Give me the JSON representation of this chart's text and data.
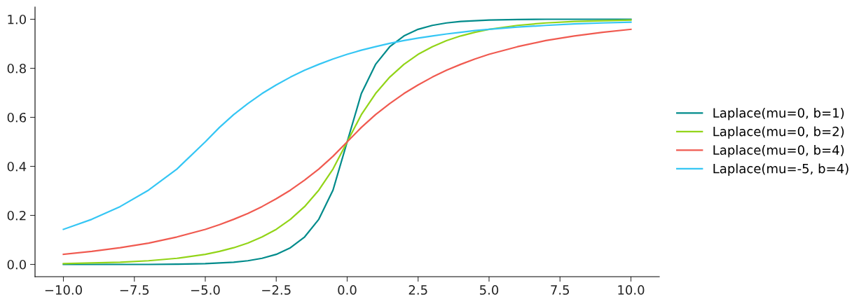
{
  "chart_data": {
    "type": "line",
    "x": [
      -10,
      -9,
      -8,
      -7,
      -6,
      -5,
      -4.5,
      -4,
      -3.5,
      -3,
      -2.5,
      -2,
      -1.5,
      -1,
      -0.5,
      0,
      0.5,
      1,
      1.5,
      2,
      2.5,
      3,
      3.5,
      4,
      4.5,
      5,
      6,
      7,
      8,
      9,
      10
    ],
    "series": [
      {
        "name": "Laplace(mu=0, b=1)",
        "color": "#008b8b",
        "values": [
          0.0,
          0.0,
          0.0,
          0.0,
          0.001,
          0.003,
          0.006,
          0.009,
          0.015,
          0.025,
          0.041,
          0.068,
          0.112,
          0.184,
          0.303,
          0.5,
          0.697,
          0.816,
          0.888,
          0.932,
          0.959,
          0.975,
          0.985,
          0.991,
          0.994,
          0.997,
          0.999,
          1.0,
          1.0,
          1.0,
          1.0
        ]
      },
      {
        "name": "Laplace(mu=0, b=2)",
        "color": "#92d418",
        "values": [
          0.003,
          0.006,
          0.009,
          0.015,
          0.025,
          0.041,
          0.053,
          0.068,
          0.087,
          0.112,
          0.143,
          0.184,
          0.236,
          0.303,
          0.389,
          0.5,
          0.611,
          0.697,
          0.764,
          0.816,
          0.857,
          0.888,
          0.913,
          0.932,
          0.947,
          0.959,
          0.975,
          0.985,
          0.991,
          0.994,
          0.997
        ]
      },
      {
        "name": "Laplace(mu=0, b=4)",
        "color": "#f05a50",
        "values": [
          0.041,
          0.053,
          0.068,
          0.087,
          0.112,
          0.143,
          0.162,
          0.184,
          0.208,
          0.236,
          0.268,
          0.303,
          0.344,
          0.389,
          0.441,
          0.5,
          0.559,
          0.611,
          0.656,
          0.697,
          0.732,
          0.764,
          0.792,
          0.816,
          0.838,
          0.857,
          0.888,
          0.913,
          0.932,
          0.947,
          0.959
        ]
      },
      {
        "name": "Laplace(mu=-5, b=4)",
        "color": "#35c6f4",
        "values": [
          0.143,
          0.184,
          0.236,
          0.303,
          0.389,
          0.5,
          0.559,
          0.611,
          0.656,
          0.697,
          0.732,
          0.764,
          0.792,
          0.816,
          0.838,
          0.857,
          0.874,
          0.888,
          0.902,
          0.913,
          0.923,
          0.932,
          0.94,
          0.947,
          0.954,
          0.959,
          0.968,
          0.975,
          0.981,
          0.985,
          0.988
        ]
      }
    ],
    "xlim": [
      -11,
      11
    ],
    "xticks": [
      {
        "value": -10,
        "label": "−10.0"
      },
      {
        "value": -7.5,
        "label": "−7.5"
      },
      {
        "value": -5,
        "label": "−5.0"
      },
      {
        "value": -2.5,
        "label": "−2.5"
      },
      {
        "value": 0,
        "label": "0.0"
      },
      {
        "value": 2.5,
        "label": "2.5"
      },
      {
        "value": 5,
        "label": "5.0"
      },
      {
        "value": 7.5,
        "label": "7.5"
      },
      {
        "value": 10,
        "label": "10.0"
      }
    ],
    "ylim": [
      -0.05,
      1.05
    ],
    "yticks": [
      {
        "value": 0,
        "label": "0.0"
      },
      {
        "value": 0.2,
        "label": "0.2"
      },
      {
        "value": 0.4,
        "label": "0.4"
      },
      {
        "value": 0.6,
        "label": "0.6"
      },
      {
        "value": 0.8,
        "label": "0.8"
      },
      {
        "value": 1,
        "label": "1.0"
      }
    ],
    "grid": false,
    "legend": "right",
    "marker": "none",
    "line_style": "solid"
  }
}
